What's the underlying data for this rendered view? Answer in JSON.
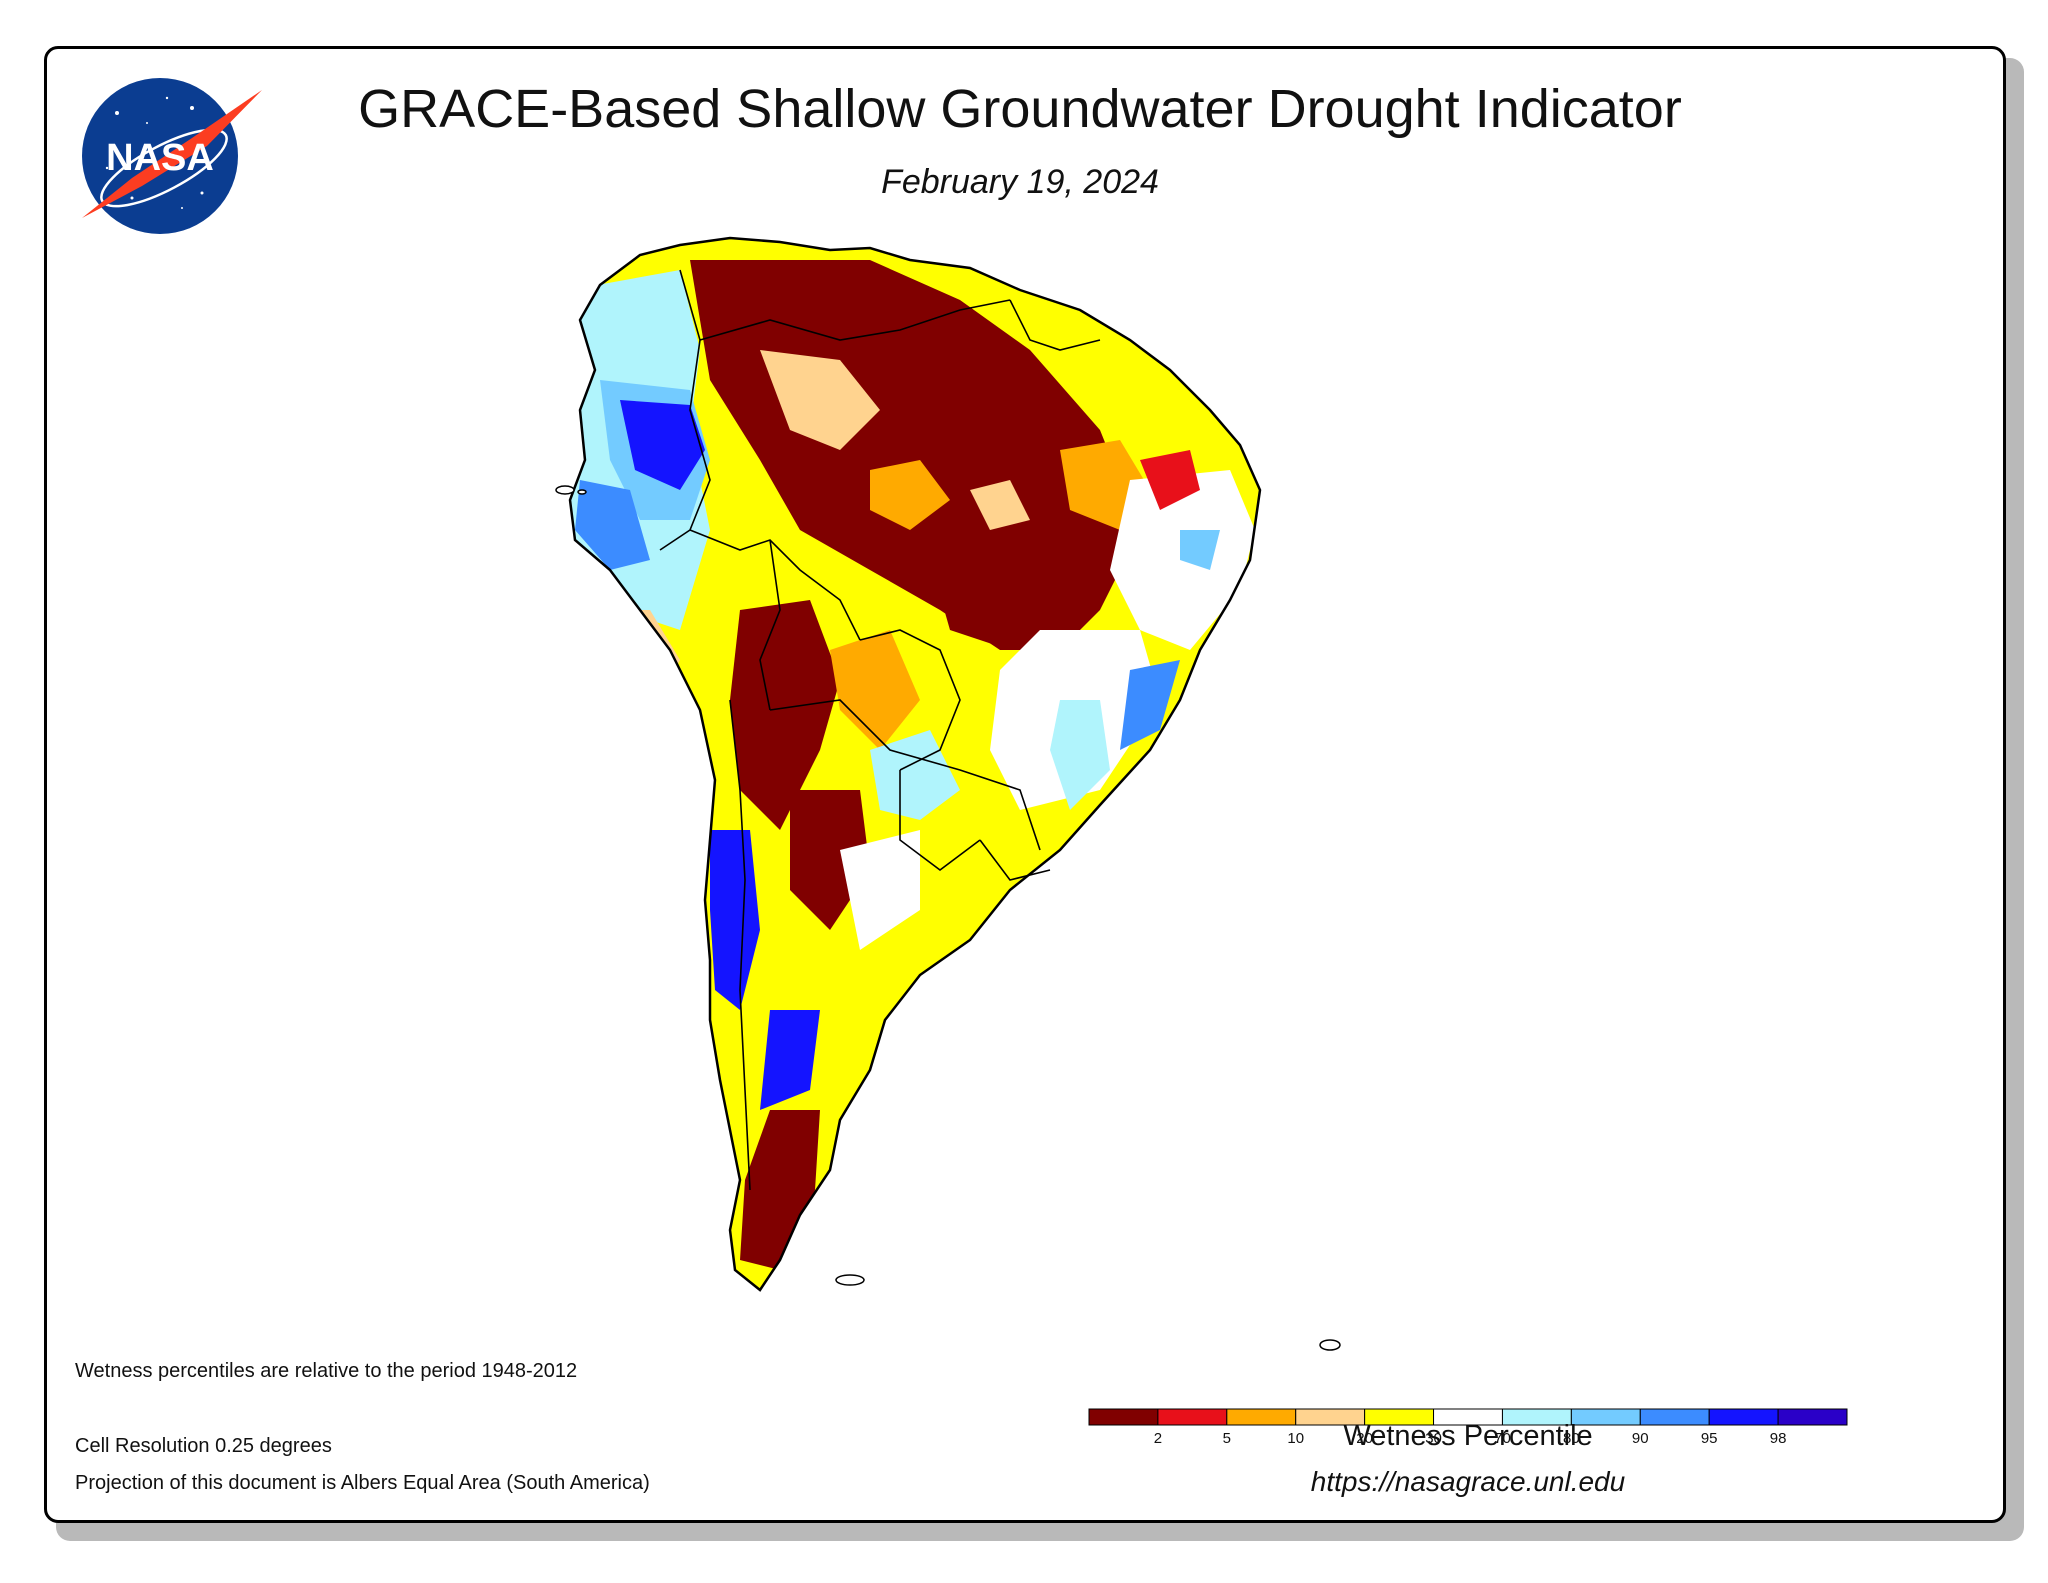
{
  "header": {
    "title": "GRACE-Based Shallow Groundwater Drought Indicator",
    "date": "February 19, 2024"
  },
  "logo": {
    "text": "NASA",
    "name": "nasa-meatball-logo"
  },
  "notes": {
    "period": "Wetness percentiles are relative to the period 1948-2012",
    "resolution": "Cell Resolution 0.25 degrees",
    "projection": "Projection of this document is Albers Equal Area (South America)"
  },
  "legend": {
    "title": "Wetness Percentile",
    "ticks": [
      "2",
      "5",
      "10",
      "20",
      "30",
      "70",
      "80",
      "90",
      "95",
      "98"
    ],
    "colors": [
      "#800000",
      "#e8101a",
      "#ffaa00",
      "#ffd38f",
      "#ffff00",
      "#ffffff",
      "#b0f4fc",
      "#73cbff",
      "#3c8cff",
      "#1414ff",
      "#2a00c8"
    ]
  },
  "footer": {
    "url": "https://nasagrace.unl.edu"
  }
}
